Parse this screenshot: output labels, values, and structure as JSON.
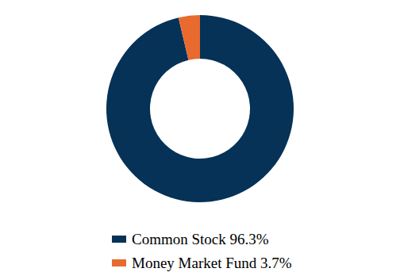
{
  "chart_data": {
    "type": "pie",
    "categories": [
      "Common Stock 96.3%",
      "Money Market Fund 3.7%"
    ],
    "values": [
      96.3,
      3.7
    ],
    "colors": [
      "#053256",
      "#e86a2e"
    ],
    "legend": "bottom"
  }
}
